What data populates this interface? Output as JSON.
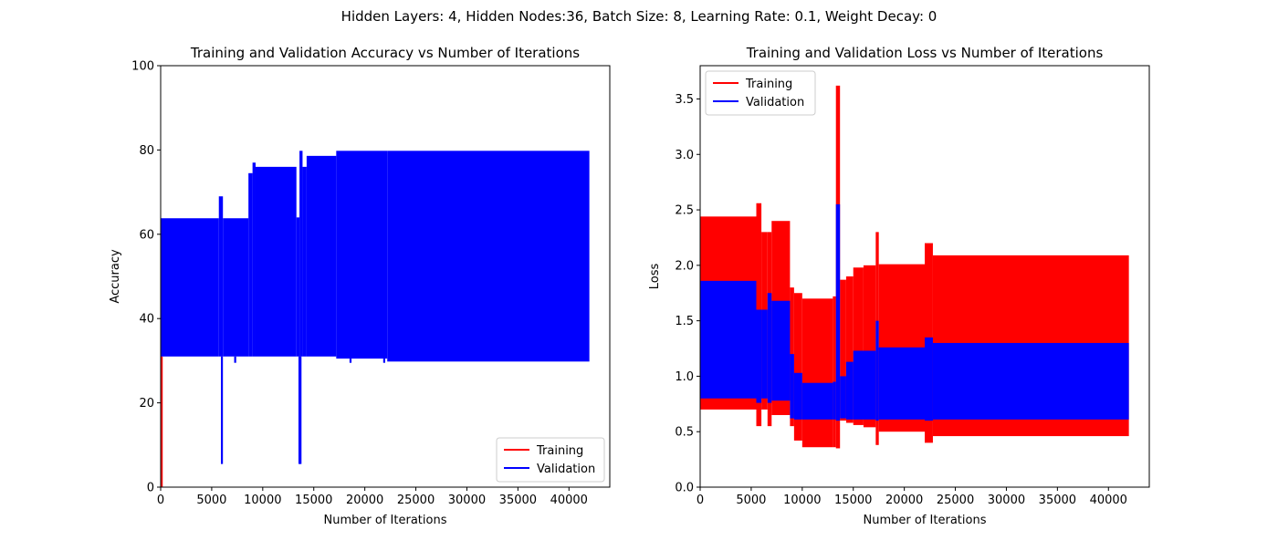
{
  "figure": {
    "suptitle": "Hidden Layers: 4, Hidden Nodes:36, Batch Size: 8, Learning Rate: 0.1, Weight Decay: 0"
  },
  "colors": {
    "training": "#ff0000",
    "validation": "#0000ff"
  },
  "chart_data": [
    {
      "type": "line",
      "title": "Training and Validation Accuracy vs Number of Iterations",
      "xlabel": "Number of Iterations",
      "ylabel": "Accuracy",
      "xlim": [
        0,
        44000
      ],
      "ylim": [
        0,
        100
      ],
      "xticks": [
        0,
        5000,
        10000,
        15000,
        20000,
        25000,
        30000,
        35000,
        40000
      ],
      "yticks": [
        0,
        20,
        40,
        60,
        80,
        100
      ],
      "legend": {
        "placement": "lower-right",
        "entries": [
          {
            "label": "Training",
            "color": "#ff0000"
          },
          {
            "label": "Validation",
            "color": "#0000ff"
          }
        ]
      },
      "series": [
        {
          "name": "Training",
          "note_band": true,
          "bands": [
            {
              "x0": 0,
              "x1": 200,
              "min": 0,
              "max": 31
            }
          ]
        },
        {
          "name": "Validation",
          "bands": [
            {
              "x0": 0,
              "x1": 5700,
              "min": 31,
              "max": 63.8
            },
            {
              "x0": 5700,
              "x1": 6100,
              "min": 31,
              "max": 69
            },
            {
              "x0": 6100,
              "x1": 8600,
              "min": 31,
              "max": 63.8
            },
            {
              "x0": 8600,
              "x1": 9000,
              "min": 31,
              "max": 74.5
            },
            {
              "x0": 9000,
              "x1": 9300,
              "min": 31,
              "max": 77
            },
            {
              "x0": 9300,
              "x1": 13300,
              "min": 31,
              "max": 76
            },
            {
              "x0": 13300,
              "x1": 13600,
              "min": 31,
              "max": 64
            },
            {
              "x0": 13600,
              "x1": 13900,
              "min": 31,
              "max": 79.8
            },
            {
              "x0": 13900,
              "x1": 14300,
              "min": 31,
              "max": 76
            },
            {
              "x0": 14300,
              "x1": 17200,
              "min": 31,
              "max": 78.6
            },
            {
              "x0": 17200,
              "x1": 22200,
              "min": 30.5,
              "max": 79.8
            },
            {
              "x0": 22200,
              "x1": 42000,
              "min": 29.8,
              "max": 79.8
            }
          ],
          "spikes": [
            {
              "x": 6000,
              "y": 5.5
            },
            {
              "x": 7300,
              "y": 29.5
            },
            {
              "x": 13600,
              "y": 5.5
            },
            {
              "x": 13700,
              "y": 5.5
            },
            {
              "x": 18600,
              "y": 29.5
            },
            {
              "x": 21900,
              "y": 29.5
            }
          ]
        }
      ]
    },
    {
      "type": "line",
      "title": "Training and Validation Loss vs Number of Iterations",
      "xlabel": "Number of Iterations",
      "ylabel": "Loss",
      "xlim": [
        0,
        44000
      ],
      "ylim": [
        0,
        3.8
      ],
      "xticks": [
        0,
        5000,
        10000,
        15000,
        20000,
        25000,
        30000,
        35000,
        40000
      ],
      "yticks": [
        0.0,
        0.5,
        1.0,
        1.5,
        2.0,
        2.5,
        3.0,
        3.5
      ],
      "ytick_labels": [
        "0.0",
        "0.5",
        "1.0",
        "1.5",
        "2.0",
        "2.5",
        "3.0",
        "3.5"
      ],
      "legend": {
        "placement": "top-left",
        "entries": [
          {
            "label": "Training",
            "color": "#ff0000"
          },
          {
            "label": "Validation",
            "color": "#0000ff"
          }
        ]
      },
      "series": [
        {
          "name": "Training",
          "bands": [
            {
              "x0": 0,
              "x1": 5500,
              "min": 0.7,
              "max": 2.44
            },
            {
              "x0": 5500,
              "x1": 6000,
              "min": 0.55,
              "max": 2.56
            },
            {
              "x0": 6000,
              "x1": 6600,
              "min": 0.7,
              "max": 2.3
            },
            {
              "x0": 6600,
              "x1": 7000,
              "min": 0.55,
              "max": 2.3
            },
            {
              "x0": 7000,
              "x1": 8800,
              "min": 0.65,
              "max": 2.4
            },
            {
              "x0": 8800,
              "x1": 9200,
              "min": 0.55,
              "max": 1.8
            },
            {
              "x0": 9200,
              "x1": 10000,
              "min": 0.42,
              "max": 1.75
            },
            {
              "x0": 10000,
              "x1": 13000,
              "min": 0.36,
              "max": 1.7
            },
            {
              "x0": 13000,
              "x1": 13300,
              "min": 0.36,
              "max": 1.72
            },
            {
              "x0": 13300,
              "x1": 13700,
              "min": 0.35,
              "max": 3.62
            },
            {
              "x0": 13700,
              "x1": 14300,
              "min": 0.6,
              "max": 1.87
            },
            {
              "x0": 14300,
              "x1": 15000,
              "min": 0.58,
              "max": 1.9
            },
            {
              "x0": 15000,
              "x1": 16000,
              "min": 0.56,
              "max": 1.98
            },
            {
              "x0": 16000,
              "x1": 17200,
              "min": 0.54,
              "max": 2.0
            },
            {
              "x0": 17200,
              "x1": 17500,
              "min": 0.38,
              "max": 2.3
            },
            {
              "x0": 17500,
              "x1": 22000,
              "min": 0.5,
              "max": 2.01
            },
            {
              "x0": 22000,
              "x1": 22800,
              "min": 0.4,
              "max": 2.2
            },
            {
              "x0": 22800,
              "x1": 42000,
              "min": 0.46,
              "max": 2.09
            }
          ]
        },
        {
          "name": "Validation",
          "bands": [
            {
              "x0": 0,
              "x1": 5500,
              "min": 0.8,
              "max": 1.86
            },
            {
              "x0": 5500,
              "x1": 6000,
              "min": 0.76,
              "max": 1.6
            },
            {
              "x0": 6000,
              "x1": 6600,
              "min": 0.8,
              "max": 1.6
            },
            {
              "x0": 6600,
              "x1": 7000,
              "min": 0.76,
              "max": 1.75
            },
            {
              "x0": 7000,
              "x1": 8800,
              "min": 0.78,
              "max": 1.68
            },
            {
              "x0": 8800,
              "x1": 9200,
              "min": 0.62,
              "max": 1.2
            },
            {
              "x0": 9200,
              "x1": 10000,
              "min": 0.61,
              "max": 1.03
            },
            {
              "x0": 10000,
              "x1": 13000,
              "min": 0.61,
              "max": 0.94
            },
            {
              "x0": 13000,
              "x1": 13300,
              "min": 0.61,
              "max": 0.95
            },
            {
              "x0": 13300,
              "x1": 13700,
              "min": 0.6,
              "max": 2.55
            },
            {
              "x0": 13700,
              "x1": 14300,
              "min": 0.62,
              "max": 1.0
            },
            {
              "x0": 14300,
              "x1": 15000,
              "min": 0.61,
              "max": 1.13
            },
            {
              "x0": 15000,
              "x1": 17200,
              "min": 0.61,
              "max": 1.23
            },
            {
              "x0": 17200,
              "x1": 17500,
              "min": 0.6,
              "max": 1.5
            },
            {
              "x0": 17500,
              "x1": 22000,
              "min": 0.61,
              "max": 1.26
            },
            {
              "x0": 22000,
              "x1": 22800,
              "min": 0.6,
              "max": 1.35
            },
            {
              "x0": 22800,
              "x1": 42000,
              "min": 0.61,
              "max": 1.3
            }
          ]
        }
      ]
    }
  ]
}
